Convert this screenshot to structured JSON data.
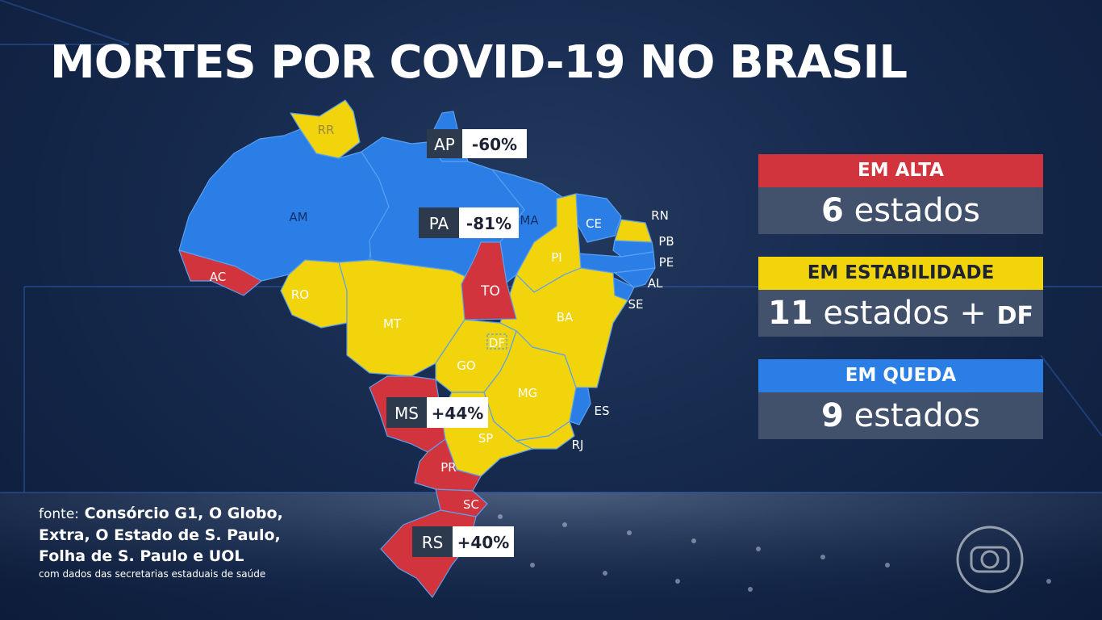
{
  "title": "MORTES POR COVID-19 NO BRASIL",
  "colors": {
    "alta": "#d1343d",
    "estabilidade": "#f1d40c",
    "queda": "#2a7ee6"
  },
  "map": {
    "labels": {
      "RR": "RR",
      "AP": "AP",
      "AM": "AM",
      "PA": "PA",
      "MA": "MA",
      "CE": "CE",
      "RN": "RN",
      "PB": "PB",
      "PE": "PE",
      "AL": "AL",
      "SE": "SE",
      "PI": "PI",
      "AC": "AC",
      "RO": "RO",
      "TO": "TO",
      "MT": "MT",
      "BA": "BA",
      "DF": "DF",
      "GO": "GO",
      "MG": "MG",
      "ES": "ES",
      "MS": "MS",
      "SP": "SP",
      "RJ": "RJ",
      "PR": "PR",
      "SC": "SC",
      "RS": "RS"
    },
    "callouts": {
      "AP": "-60%",
      "PA": "-81%",
      "MS": "+44%",
      "RS": "+40%"
    }
  },
  "legend": {
    "alta": {
      "label": "EM ALTA",
      "count": "6",
      "unit": "estados"
    },
    "estabilidade": {
      "label": "EM ESTABILIDADE",
      "count": "11",
      "unit": "estados +",
      "extra": "DF"
    },
    "queda": {
      "label": "EM QUEDA",
      "count": "9",
      "unit": "estados"
    }
  },
  "source": {
    "label": "fonte:",
    "line1": "Consórcio G1, O Globo,",
    "line2": "Extra, O Estado de S. Paulo,",
    "line3": "Folha de S. Paulo e UOL",
    "line4": "com dados das secretarias estaduais de saúde"
  },
  "logo_icon": "globo-logo-icon"
}
